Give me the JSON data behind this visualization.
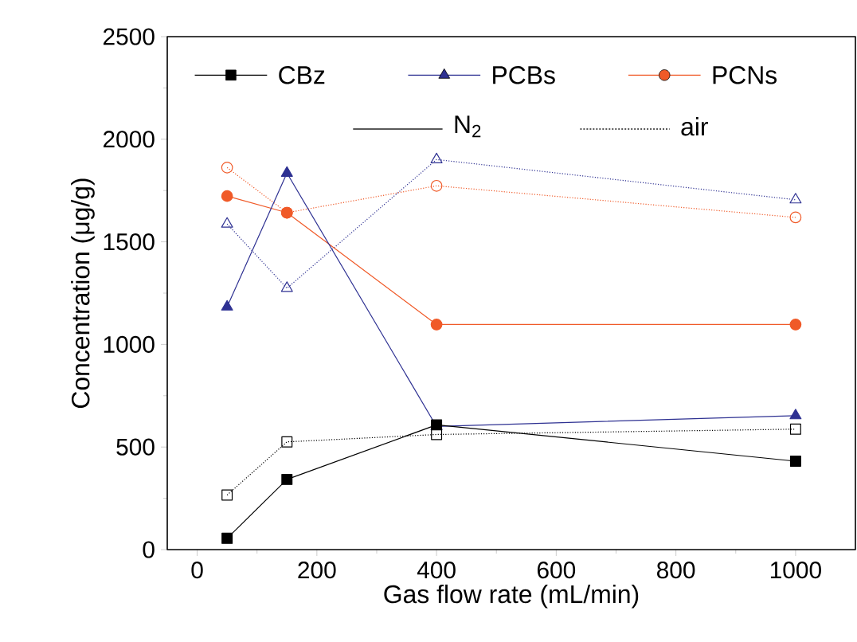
{
  "chart_data": {
    "type": "line",
    "xlabel": "Gas flow rate (mL/min)",
    "ylabel": "Concentration (μg/g)",
    "xlim": [
      -50,
      1100
    ],
    "xticks": [
      0,
      200,
      400,
      600,
      800,
      1000
    ],
    "ylim": [
      0,
      2500
    ],
    "yticks": [
      0,
      500,
      1000,
      1500,
      2000,
      2500
    ],
    "grid": false,
    "legend": "top",
    "annotations": [
      "N$_{2}$",
      "air"
    ],
    "series": [
      {
        "name": "CBz",
        "color": "#000000",
        "marker": "square",
        "line_style": "solid",
        "x": [
          50,
          150,
          400,
          1000
        ],
        "values": [
          55,
          342,
          608,
          431
        ]
      },
      {
        "name": "PCBs",
        "color": "#2e3192",
        "marker": "triangle",
        "line_style": "solid",
        "x": [
          50,
          150,
          400,
          1000
        ],
        "values": [
          1183,
          1835,
          600,
          653
        ]
      },
      {
        "name": "PCNs",
        "color": "#f05a28",
        "marker": "circle",
        "line_style": "solid",
        "x": [
          50,
          150,
          400,
          1000
        ],
        "values": [
          1723,
          1642,
          1097,
          1097
        ]
      },
      {
        "color": "#000000",
        "marker": "square",
        "line_style": "dotted",
        "x": [
          50,
          150,
          400,
          1000
        ],
        "values": [
          266,
          525,
          561,
          587
        ]
      },
      {
        "color": "#2e3192",
        "marker": "triangle",
        "line_style": "dotted",
        "x": [
          50,
          150,
          400,
          1000
        ],
        "values": [
          1587,
          1274,
          1901,
          1705
        ]
      },
      {
        "color": "#f05a28",
        "marker": "circle",
        "line_style": "dotted",
        "x": [
          50,
          150,
          400,
          1000
        ],
        "values": [
          1862,
          1642,
          1773,
          1619
        ]
      }
    ]
  }
}
